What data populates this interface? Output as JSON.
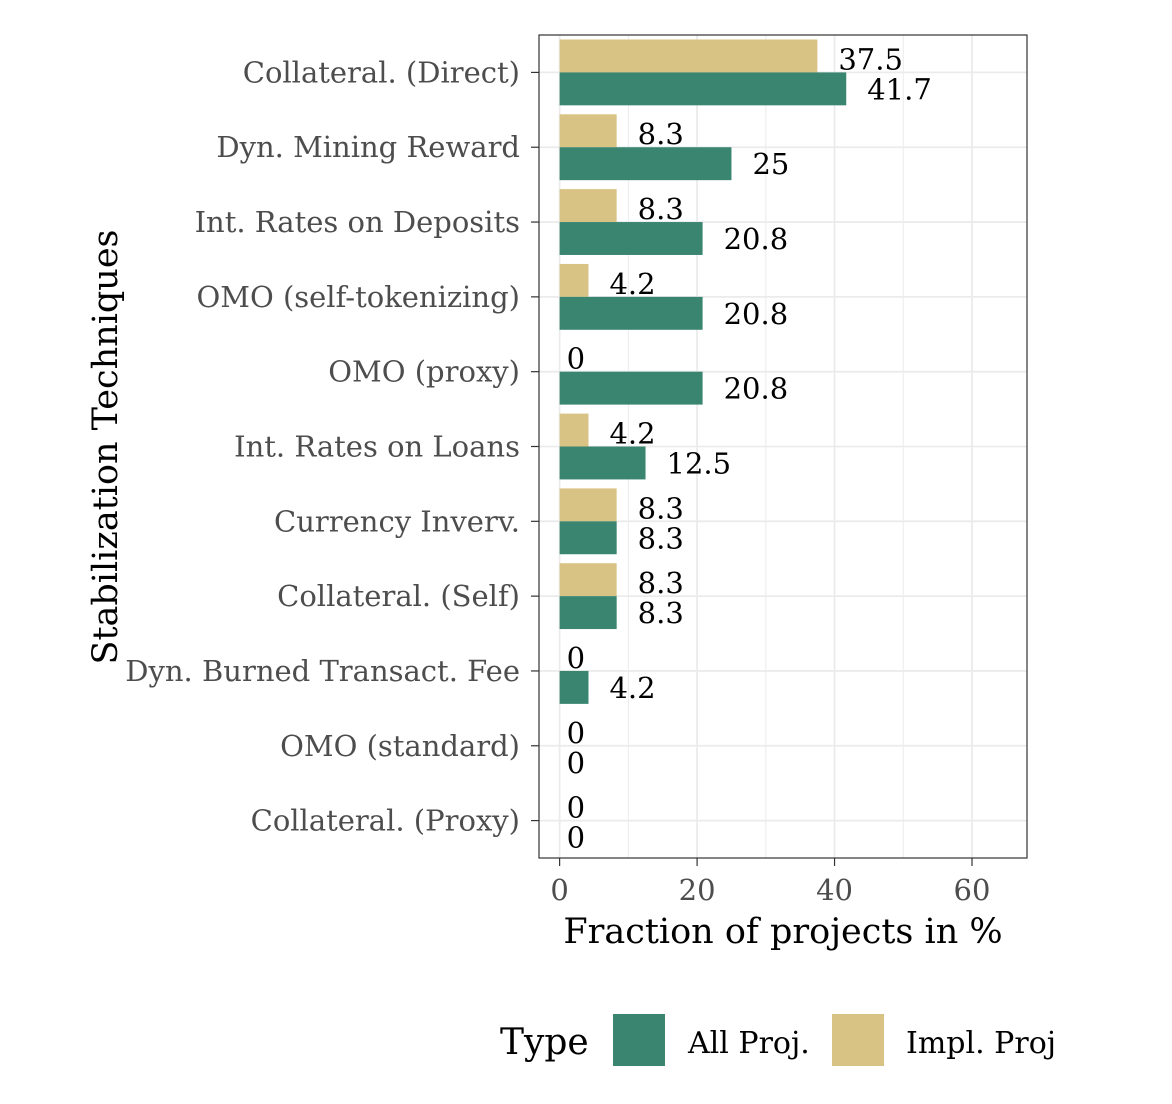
{
  "chart_data": {
    "type": "bar",
    "orientation": "horizontal",
    "xlabel": "Fraction of projects in %",
    "ylabel": "Stabilization Techniques",
    "xlim": [
      -3,
      68
    ],
    "xticks": [
      0,
      20,
      40,
      60
    ],
    "xtick_labels": [
      "0",
      "20",
      "40",
      "60"
    ],
    "grid": true,
    "categories": [
      "Collateral. (Direct)",
      "Dyn. Mining Reward",
      "Int. Rates on Deposits",
      "OMO (self-tokenizing)",
      "OMO (proxy)",
      "Int. Rates on Loans",
      "Currency Inverv.",
      "Collateral. (Self)",
      "Dyn. Burned Transact. Fee",
      "OMO (standard)",
      "Collateral. (Proxy)"
    ],
    "series": [
      {
        "name": "All Proj.",
        "color": "#3a8570",
        "values": [
          41.7,
          25,
          20.8,
          20.8,
          20.8,
          12.5,
          8.3,
          8.3,
          4.2,
          0,
          0
        ],
        "labels": [
          "41.7",
          "25",
          "20.8",
          "20.8",
          "20.8",
          "12.5",
          "8.3",
          "8.3",
          "4.2",
          "0",
          "0"
        ]
      },
      {
        "name": "Impl. Proj",
        "color": "#d8c385",
        "values": [
          37.5,
          8.3,
          8.3,
          4.2,
          0,
          4.2,
          8.3,
          8.3,
          0,
          0,
          0
        ],
        "labels": [
          "37.5",
          "8.3",
          "8.3",
          "4.2",
          "0",
          "4.2",
          "8.3",
          "8.3",
          "0",
          "0",
          "0"
        ]
      }
    ],
    "legend": {
      "title": "Type",
      "position": "bottom"
    }
  }
}
